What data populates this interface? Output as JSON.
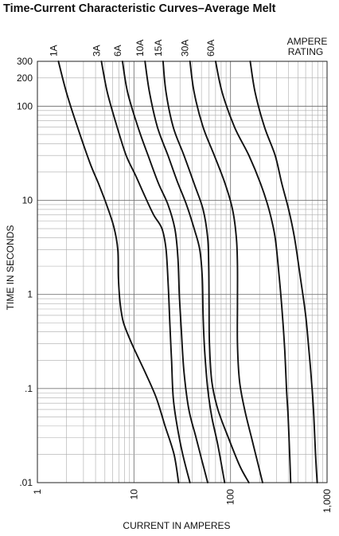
{
  "chart_data": {
    "type": "line",
    "title": "Time-Current Characteristic Curves–Average Melt",
    "xlabel": "CURRENT IN AMPERES",
    "ylabel": "TIME IN SECONDS",
    "xscale": "log",
    "yscale": "log",
    "xlim": [
      1,
      1000
    ],
    "ylim": [
      0.01,
      300
    ],
    "xticks": [
      {
        "v": 1,
        "label": "1"
      },
      {
        "v": 10,
        "label": "10"
      },
      {
        "v": 100,
        "label": "100"
      },
      {
        "v": 1000,
        "label": "1,000"
      }
    ],
    "yticks": [
      {
        "v": 300,
        "label": "300"
      },
      {
        "v": 200,
        "label": "200"
      },
      {
        "v": 100,
        "label": "100"
      },
      {
        "v": 10,
        "label": "10"
      },
      {
        "v": 1,
        "label": "1"
      },
      {
        "v": 0.1,
        "label": ".1"
      },
      {
        "v": 0.01,
        "label": ".01"
      }
    ],
    "grid": true,
    "legend_title": [
      "AMPERE",
      "RATING"
    ],
    "series": [
      {
        "name": "1A",
        "points": [
          [
            1.65,
            300
          ],
          [
            2.0,
            140
          ],
          [
            2.6,
            60
          ],
          [
            3.5,
            25
          ],
          [
            4.3,
            15
          ],
          [
            5.2,
            9
          ],
          [
            6.2,
            5.2
          ],
          [
            6.8,
            3
          ],
          [
            6.9,
            1.5
          ],
          [
            7.2,
            0.8
          ],
          [
            7.8,
            0.5
          ],
          [
            9.5,
            0.3
          ],
          [
            13,
            0.15
          ],
          [
            17,
            0.08
          ],
          [
            21,
            0.04
          ],
          [
            26,
            0.02
          ],
          [
            29,
            0.01
          ]
        ]
      },
      {
        "name": "3A",
        "points": [
          [
            4.6,
            300
          ],
          [
            5.3,
            140
          ],
          [
            6.7,
            60
          ],
          [
            8.3,
            30
          ],
          [
            10.5,
            18
          ],
          [
            13,
            11
          ],
          [
            16,
            7
          ],
          [
            19.5,
            5
          ],
          [
            21.5,
            3
          ],
          [
            22.7,
            1.2
          ],
          [
            23.5,
            0.5
          ],
          [
            24.5,
            0.2
          ],
          [
            25.5,
            0.08
          ],
          [
            28,
            0.04
          ],
          [
            32,
            0.02
          ],
          [
            38,
            0.01
          ]
        ]
      },
      {
        "name": "6A",
        "points": [
          [
            7.6,
            300
          ],
          [
            8.6,
            140
          ],
          [
            11,
            60
          ],
          [
            14,
            30
          ],
          [
            18,
            15
          ],
          [
            22.5,
            9
          ],
          [
            26.5,
            5
          ],
          [
            28.5,
            2.5
          ],
          [
            29.5,
            1
          ],
          [
            31,
            0.4
          ],
          [
            33,
            0.15
          ],
          [
            37,
            0.06
          ],
          [
            44,
            0.03
          ],
          [
            50,
            0.018
          ],
          [
            58,
            0.01
          ]
        ]
      },
      {
        "name": "10A",
        "points": [
          [
            13,
            300
          ],
          [
            14.5,
            140
          ],
          [
            17.5,
            60
          ],
          [
            22.5,
            30
          ],
          [
            28,
            16
          ],
          [
            35,
            9
          ],
          [
            42,
            5
          ],
          [
            48,
            3
          ],
          [
            51,
            1.5
          ],
          [
            52,
            0.6
          ],
          [
            54,
            0.25
          ],
          [
            58,
            0.1
          ],
          [
            64,
            0.05
          ],
          [
            74,
            0.025
          ],
          [
            87,
            0.01
          ]
        ]
      },
      {
        "name": "15A",
        "points": [
          [
            20,
            300
          ],
          [
            21.5,
            140
          ],
          [
            25.5,
            60
          ],
          [
            33,
            30
          ],
          [
            42,
            15
          ],
          [
            52,
            8
          ],
          [
            58,
            4
          ],
          [
            59.5,
            2
          ],
          [
            60,
            0.8
          ],
          [
            60.5,
            0.3
          ],
          [
            64,
            0.12
          ],
          [
            74,
            0.06
          ],
          [
            95,
            0.03
          ],
          [
            125,
            0.015
          ],
          [
            155,
            0.01
          ]
        ]
      },
      {
        "name": "30A",
        "points": [
          [
            38,
            300
          ],
          [
            42,
            140
          ],
          [
            52,
            60
          ],
          [
            68,
            30
          ],
          [
            88,
            15
          ],
          [
            105,
            8
          ],
          [
            115,
            4
          ],
          [
            118,
            2
          ],
          [
            118,
            0.8
          ],
          [
            118,
            0.3
          ],
          [
            124,
            0.12
          ],
          [
            140,
            0.06
          ],
          [
            165,
            0.03
          ],
          [
            195,
            0.015
          ],
          [
            215,
            0.01
          ]
        ]
      },
      {
        "name": "60A",
        "points": [
          [
            70,
            300
          ],
          [
            82,
            140
          ],
          [
            110,
            60
          ],
          [
            155,
            30
          ],
          [
            205,
            15
          ],
          [
            250,
            8
          ],
          [
            290,
            4
          ],
          [
            320,
            1.5
          ],
          [
            345,
            0.6
          ],
          [
            365,
            0.25
          ],
          [
            380,
            0.1
          ],
          [
            395,
            0.05
          ],
          [
            410,
            0.02
          ],
          [
            420,
            0.01
          ]
        ]
      },
      {
        "name": "",
        "points": [
          [
            160,
            300
          ],
          [
            180,
            140
          ],
          [
            225,
            60
          ],
          [
            290,
            30
          ],
          [
            340,
            15
          ],
          [
            400,
            8
          ],
          [
            460,
            4
          ],
          [
            530,
            1.5
          ],
          [
            600,
            0.6
          ],
          [
            650,
            0.25
          ],
          [
            700,
            0.1
          ],
          [
            730,
            0.05
          ],
          [
            760,
            0.02
          ],
          [
            790,
            0.01
          ]
        ]
      }
    ]
  }
}
